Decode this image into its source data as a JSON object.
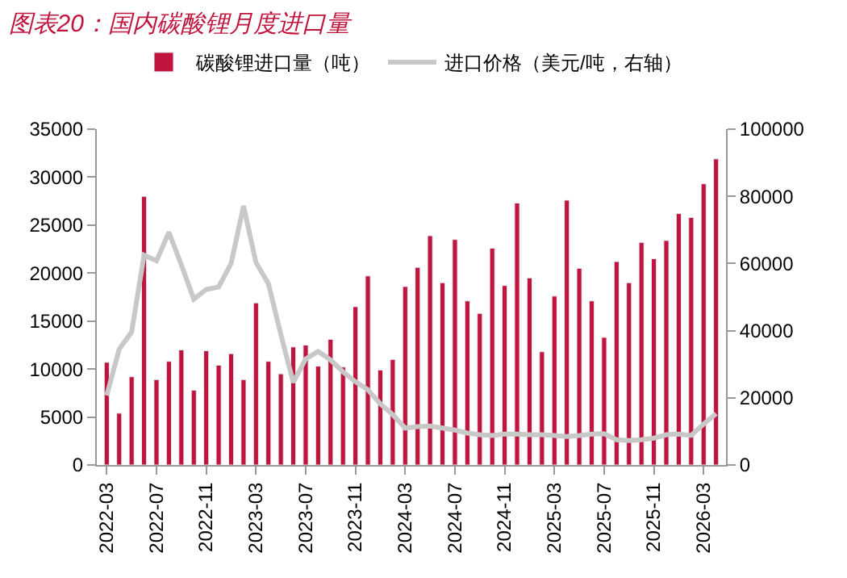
{
  "chart_data": {
    "type": "bar",
    "title": "图表20：国内碳酸锂月度进口量",
    "categories": [
      "2022-03",
      null,
      null,
      null,
      "2022-07",
      null,
      null,
      null,
      "2022-11",
      null,
      null,
      null,
      "2023-03",
      null,
      null,
      null,
      "2023-07",
      null,
      null,
      null,
      "2023-11",
      null,
      null,
      null,
      "2024-03",
      null,
      null,
      null,
      "2024-07",
      null,
      null,
      null,
      "2024-11",
      null,
      null,
      null,
      "2025-03",
      null,
      null,
      null,
      "2025-07",
      null,
      null,
      null,
      "2025-11",
      null,
      null,
      null,
      "2026-03",
      null
    ],
    "series": [
      {
        "name": "碳酸锂进口量（吨）",
        "color": "#c0143c",
        "values": [
          10700,
          5400,
          9200,
          28000,
          8900,
          10800,
          12000,
          7800,
          11900,
          10400,
          11600,
          8900,
          16900,
          10800,
          9500,
          12300,
          12500,
          10300,
          13100,
          10200,
          16500,
          19700,
          9900,
          11000,
          18600,
          20600,
          23900,
          19000,
          23500,
          17100,
          15800,
          22600,
          18700,
          27300,
          19500,
          11800,
          17600,
          27600,
          20500,
          17100,
          13300,
          21200,
          19000,
          23200,
          21500,
          23400,
          26200,
          25800,
          29300,
          31900
        ]
      },
      {
        "name": "进口价格（美元/吨，右轴）",
        "type": "line",
        "axis": "y2",
        "color": "#c8c8c8",
        "values": [
          20700,
          34500,
          39600,
          62500,
          60800,
          69300,
          59600,
          49400,
          52300,
          53000,
          60000,
          77100,
          60300,
          54000,
          38900,
          24600,
          31600,
          33800,
          31300,
          27700,
          24800,
          22400,
          18200,
          15000,
          11000,
          11400,
          11600,
          11000,
          10400,
          9500,
          9000,
          8800,
          9200,
          9200,
          9000,
          9000,
          8800,
          8500,
          8800,
          9200,
          9300,
          7500,
          7300,
          7500,
          8000,
          9000,
          9200,
          8800,
          12200,
          15300
        ]
      }
    ],
    "ylim": [
      0,
      35000
    ],
    "yticks": [
      0,
      5000,
      10000,
      15000,
      20000,
      25000,
      30000,
      35000
    ],
    "y2lim": [
      0,
      100000
    ],
    "y2ticks": [
      0,
      20000,
      40000,
      60000,
      80000,
      100000
    ],
    "legend": "top"
  }
}
